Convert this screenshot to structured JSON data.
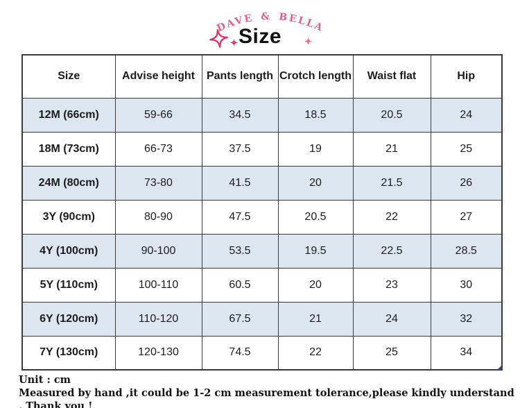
{
  "brand": "DAVE & BELLA",
  "title": "Size",
  "icons": {
    "sparkle_large": "✧",
    "sparkle_small": "✦"
  },
  "colors": {
    "brand_pink": "#e0608a",
    "sparkle_pink": "#e82a62",
    "sparkle_pink_light": "#ef6d9a",
    "row_alt_blue": "#dce6f1",
    "table_border": "#3a3a3a",
    "handle_blue": "#2f4d8f"
  },
  "table": {
    "headers": [
      "Size",
      "Advise height",
      "Pants length",
      "Crotch length",
      "Waist flat",
      "Hip"
    ],
    "rows": [
      [
        "12M (66cm)",
        "59-66",
        "34.5",
        "18.5",
        "20.5",
        "24"
      ],
      [
        "18M (73cm)",
        "66-73",
        "37.5",
        "19",
        "21",
        "25"
      ],
      [
        "24M (80cm)",
        "73-80",
        "41.5",
        "20",
        "21.5",
        "26"
      ],
      [
        "3Y (90cm)",
        "80-90",
        "47.5",
        "20.5",
        "22",
        "27"
      ],
      [
        "4Y (100cm)",
        "90-100",
        "53.5",
        "19.5",
        "22.5",
        "28.5"
      ],
      [
        "5Y (110cm)",
        "100-110",
        "60.5",
        "20",
        "23",
        "30"
      ],
      [
        "6Y (120cm)",
        "110-120",
        "67.5",
        "21",
        "24",
        "32"
      ],
      [
        "7Y (130cm)",
        "120-130",
        "74.5",
        "22",
        "25",
        "34"
      ]
    ]
  },
  "footer": {
    "unit_line": "Unit : cm",
    "tolerance_line": "Measured by hand ,it could be 1-2 cm measurement tolerance,please kindly understand , Thank you !"
  }
}
